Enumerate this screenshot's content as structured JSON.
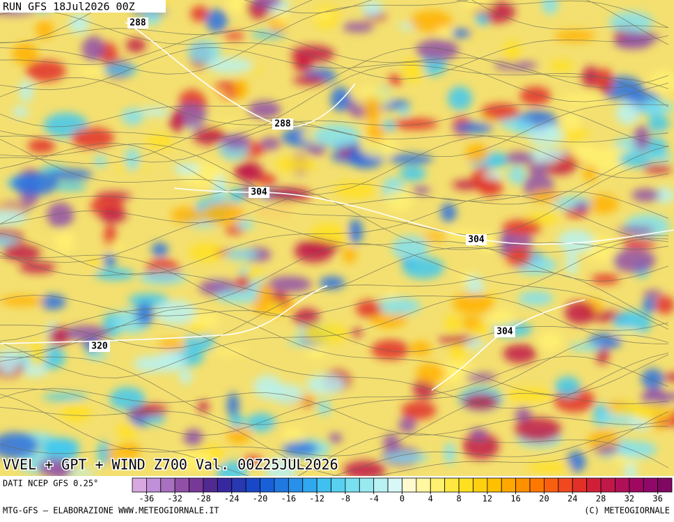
{
  "header": {
    "run": "RUN GFS 18Jul2026 00Z"
  },
  "map": {
    "contour_labels": [
      "288",
      "288",
      "304",
      "304",
      "304",
      "320"
    ],
    "title": "VVEL + GPT + WIND Z700 Val. 00Z25JUL2026"
  },
  "footer": {
    "source": "DATI NCEP GFS 0.25°",
    "credit_left": "MTG-GFS – ELABORAZIONE WWW.METEOGIORNALE.IT",
    "credit_right": "(C) METEOGIORNALE"
  },
  "colorbar": {
    "lim": [
      -38,
      38
    ],
    "ticks": [
      -36,
      -32,
      -28,
      -24,
      -20,
      -16,
      -12,
      -8,
      -4,
      0,
      4,
      8,
      12,
      16,
      20,
      24,
      28,
      32,
      36
    ],
    "colors": [
      "#d8a8e0",
      "#c090d8",
      "#a870c0",
      "#9050a8",
      "#783898",
      "#502a90",
      "#3828a0",
      "#2838b0",
      "#1848c8",
      "#1860d8",
      "#2078e0",
      "#2890e8",
      "#30a8f0",
      "#40c0f0",
      "#58d0f0",
      "#78e0f0",
      "#98eaf0",
      "#b8f2f2",
      "#d8f8f8",
      "#fffad0",
      "#fff8a0",
      "#fff070",
      "#ffe840",
      "#ffe020",
      "#ffd010",
      "#ffc000",
      "#ffa800",
      "#ff9000",
      "#ff7800",
      "#f86010",
      "#f04820",
      "#e03028",
      "#d02038",
      "#c01848",
      "#b01058",
      "#a00860",
      "#900868",
      "#800860"
    ]
  }
}
